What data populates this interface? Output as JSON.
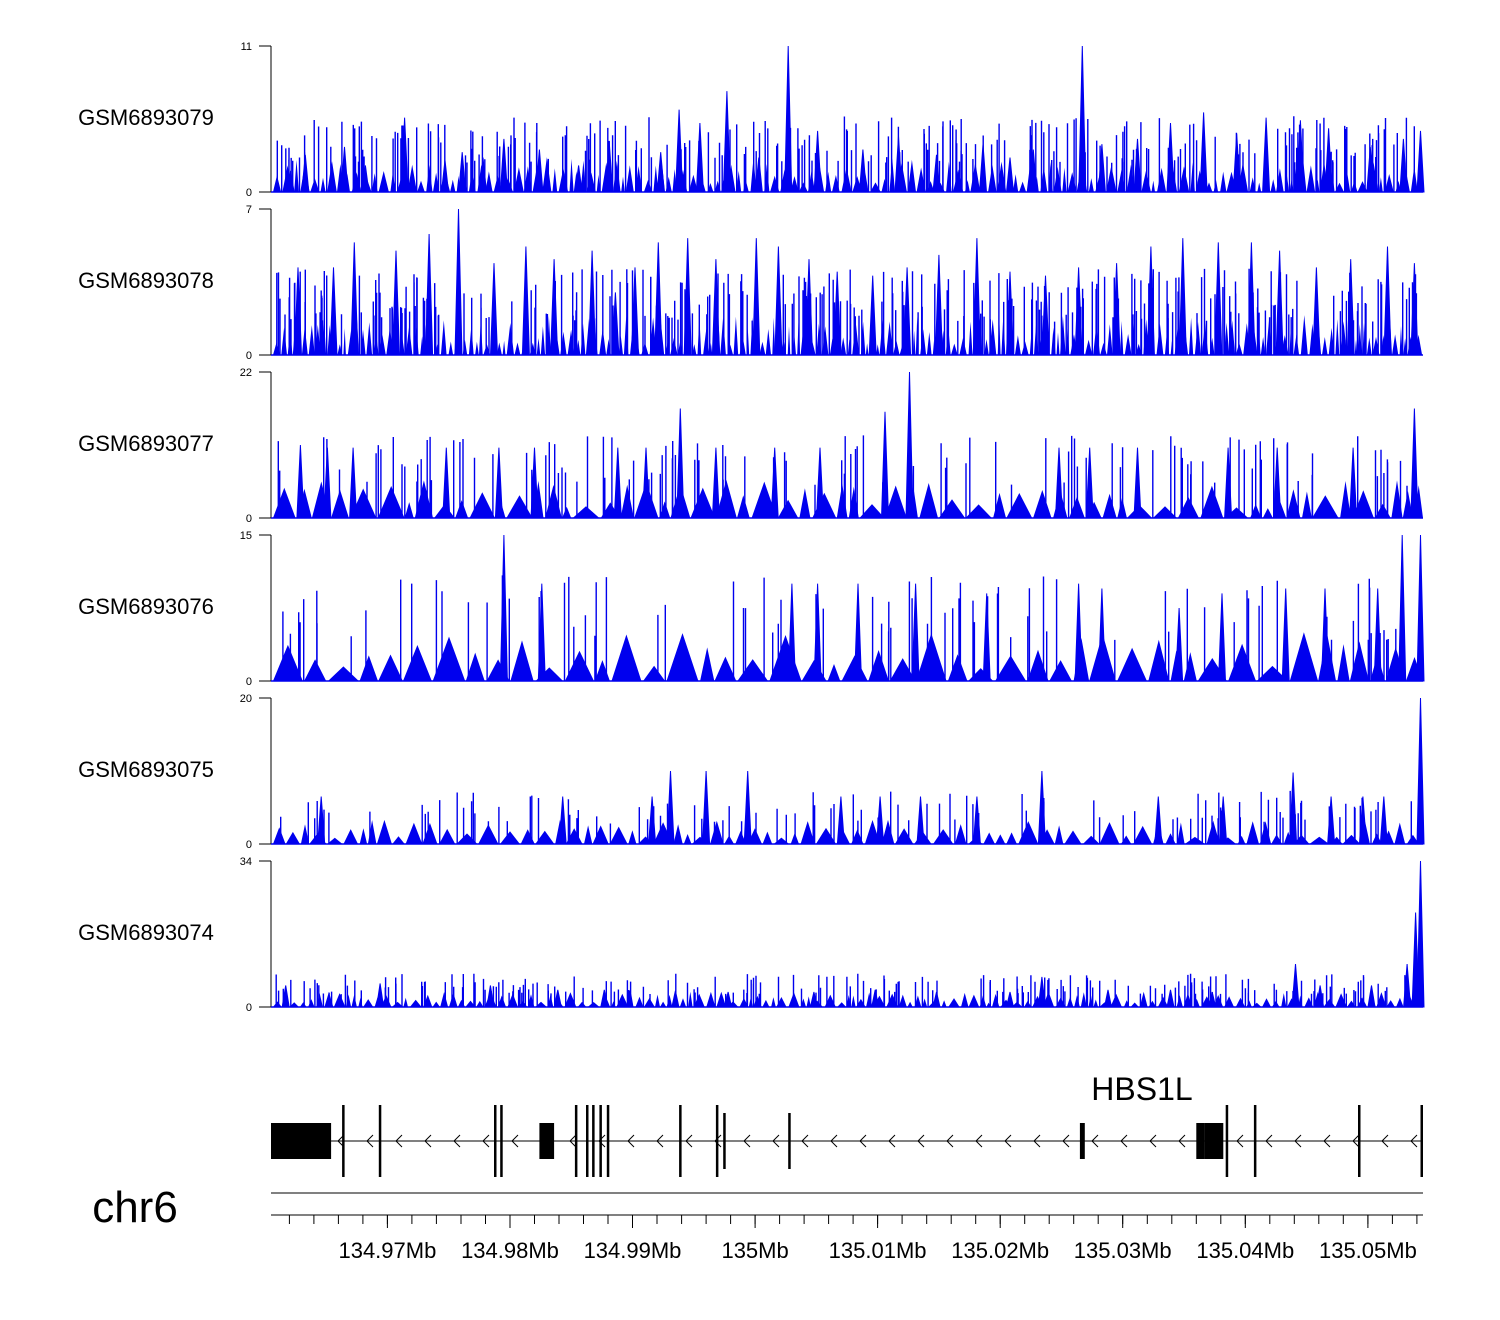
{
  "chart_data": {
    "type": "area",
    "title": "",
    "chromosome": "chr6",
    "gene_label": "HBS1L",
    "xlim_mb": [
      134.9605,
      135.0545
    ],
    "x_ticks": [
      {
        "value": 134.97,
        "label": "134.97Mb"
      },
      {
        "value": 134.98,
        "label": "134.98Mb"
      },
      {
        "value": 134.99,
        "label": "134.99Mb"
      },
      {
        "value": 135.0,
        "label": "135Mb"
      },
      {
        "value": 135.01,
        "label": "135.01Mb"
      },
      {
        "value": 135.02,
        "label": "135.02Mb"
      },
      {
        "value": 135.03,
        "label": "135.03Mb"
      },
      {
        "value": 135.04,
        "label": "135.04Mb"
      },
      {
        "value": 135.05,
        "label": "135.05Mb"
      }
    ],
    "fill_color": "#0000ee",
    "tracks": [
      {
        "name": "GSM6893079",
        "ylim": [
          0,
          11
        ],
        "ymax_label": "11",
        "ymin_label": "0",
        "peaks": [
          [
            134.9621,
            1.6
          ],
          [
            134.9633,
            2.8
          ],
          [
            134.9665,
            3.4
          ],
          [
            134.9682,
            2.0
          ],
          [
            134.9714,
            5.6
          ],
          [
            134.9747,
            2.4
          ],
          [
            134.9761,
            3.0
          ],
          [
            134.9778,
            2.6
          ],
          [
            134.9795,
            4.0
          ],
          [
            134.9824,
            3.2
          ],
          [
            134.9856,
            2.0
          ],
          [
            134.9881,
            3.8
          ],
          [
            134.9923,
            3.0
          ],
          [
            134.9938,
            6.2
          ],
          [
            134.9955,
            5.2
          ],
          [
            134.9977,
            7.6
          ],
          [
            135.0003,
            2.6
          ],
          [
            135.0027,
            11.0
          ],
          [
            135.0051,
            4.6
          ],
          [
            135.0088,
            3.2
          ],
          [
            135.0117,
            4.2
          ],
          [
            135.0148,
            2.8
          ],
          [
            135.0186,
            3.6
          ],
          [
            135.0208,
            2.6
          ],
          [
            135.0227,
            3.2
          ],
          [
            135.0267,
            11.0
          ],
          [
            135.0283,
            3.6
          ],
          [
            135.0312,
            4.0
          ],
          [
            135.0339,
            5.2
          ],
          [
            135.0366,
            6.0
          ],
          [
            135.0393,
            4.4
          ],
          [
            135.0417,
            5.6
          ],
          [
            135.0445,
            5.4
          ],
          [
            135.0468,
            4.8
          ],
          [
            135.0502,
            3.4
          ],
          [
            135.0529,
            4.0
          ],
          [
            135.0543,
            4.6
          ]
        ]
      },
      {
        "name": "GSM6893078",
        "ylim": [
          0,
          7
        ],
        "ymax_label": "7",
        "ymin_label": "0",
        "peaks": [
          [
            134.9627,
            4.2
          ],
          [
            134.9656,
            4.2
          ],
          [
            134.9673,
            5.4
          ],
          [
            134.9707,
            5.0
          ],
          [
            134.9734,
            5.8
          ],
          [
            134.9758,
            7.0
          ],
          [
            134.9787,
            4.4
          ],
          [
            134.9813,
            5.2
          ],
          [
            134.9836,
            4.6
          ],
          [
            134.9867,
            5.0
          ],
          [
            134.9886,
            3.0
          ],
          [
            134.9902,
            4.2
          ],
          [
            134.9921,
            5.4
          ],
          [
            134.9945,
            5.6
          ],
          [
            134.9968,
            4.6
          ],
          [
            135.0001,
            5.6
          ],
          [
            135.0019,
            5.2
          ],
          [
            135.0044,
            4.6
          ],
          [
            135.0067,
            4.0
          ],
          [
            135.0096,
            3.8
          ],
          [
            135.0124,
            4.2
          ],
          [
            135.015,
            4.8
          ],
          [
            135.0181,
            5.6
          ],
          [
            135.0208,
            4.0
          ],
          [
            135.0237,
            3.8
          ],
          [
            135.0264,
            4.2
          ],
          [
            135.0295,
            4.4
          ],
          [
            135.0323,
            5.2
          ],
          [
            135.0349,
            5.6
          ],
          [
            135.0378,
            5.4
          ],
          [
            135.0405,
            5.4
          ],
          [
            135.0428,
            5.0
          ],
          [
            135.0458,
            4.2
          ],
          [
            135.0486,
            4.6
          ],
          [
            135.0516,
            5.2
          ],
          [
            135.0538,
            4.4
          ]
        ]
      },
      {
        "name": "GSM6893077",
        "ylim": [
          0,
          22
        ],
        "ymax_label": "22",
        "ymin_label": "0",
        "peaks": [
          [
            134.9629,
            11.0
          ],
          [
            134.9651,
            10.6
          ],
          [
            134.9672,
            10.6
          ],
          [
            134.9748,
            10.6
          ],
          [
            134.9791,
            10.6
          ],
          [
            134.982,
            10.6
          ],
          [
            134.9888,
            10.6
          ],
          [
            134.9911,
            10.6
          ],
          [
            134.9939,
            16.5
          ],
          [
            134.9968,
            10.6
          ],
          [
            135.0016,
            10.6
          ],
          [
            135.0053,
            10.6
          ],
          [
            135.0106,
            16.0
          ],
          [
            135.0126,
            22.0
          ],
          [
            135.0248,
            10.6
          ],
          [
            135.0273,
            10.6
          ],
          [
            135.0312,
            10.6
          ],
          [
            135.0386,
            10.6
          ],
          [
            135.0426,
            10.6
          ],
          [
            135.0488,
            10.6
          ],
          [
            135.0538,
            16.5
          ]
        ]
      },
      {
        "name": "GSM6893076",
        "ylim": [
          0,
          15
        ],
        "ymax_label": "15",
        "ymin_label": "0",
        "peaks": [
          [
            134.9795,
            15.0
          ],
          [
            134.9826,
            10.0
          ],
          [
            135.003,
            10.0
          ],
          [
            135.0051,
            10.0
          ],
          [
            135.0084,
            10.0
          ],
          [
            135.0131,
            10.0
          ],
          [
            135.0189,
            9.0
          ],
          [
            135.0264,
            10.0
          ],
          [
            135.0283,
            9.5
          ],
          [
            135.0346,
            7.5
          ],
          [
            135.0381,
            9.0
          ],
          [
            135.0433,
            9.5
          ],
          [
            135.0465,
            9.5
          ],
          [
            135.0508,
            9.5
          ],
          [
            135.0528,
            15.0
          ],
          [
            135.0543,
            15.0
          ]
        ]
      },
      {
        "name": "GSM6893075",
        "ylim": [
          0,
          20
        ],
        "ymax_label": "20",
        "ymin_label": "0",
        "peaks": [
          [
            134.9646,
            6.5
          ],
          [
            134.9843,
            6.5
          ],
          [
            134.9916,
            6.5
          ],
          [
            134.9931,
            10.0
          ],
          [
            134.996,
            10.0
          ],
          [
            134.9994,
            10.0
          ],
          [
            135.007,
            6.5
          ],
          [
            135.0102,
            6.5
          ],
          [
            135.0135,
            6.5
          ],
          [
            135.0181,
            6.5
          ],
          [
            135.0234,
            10.0
          ],
          [
            135.0329,
            6.5
          ],
          [
            135.0382,
            6.5
          ],
          [
            135.0439,
            9.8
          ],
          [
            135.047,
            6.5
          ],
          [
            135.0496,
            6.5
          ],
          [
            135.0513,
            6.5
          ],
          [
            135.0543,
            20.0
          ]
        ]
      },
      {
        "name": "GSM6893074",
        "ylim": [
          0,
          34
        ],
        "ymax_label": "34",
        "ymin_label": "0",
        "peaks": [
          [
            134.9617,
            5.0
          ],
          [
            134.9694,
            5.5
          ],
          [
            134.9784,
            5.0
          ],
          [
            134.9839,
            4.0
          ],
          [
            134.9877,
            4.0
          ],
          [
            134.9935,
            3.8
          ],
          [
            134.9978,
            3.5
          ],
          [
            135.0048,
            3.5
          ],
          [
            135.0098,
            4.0
          ],
          [
            135.0148,
            3.5
          ],
          [
            135.0208,
            3.5
          ],
          [
            135.0234,
            7.0
          ],
          [
            135.0288,
            4.0
          ],
          [
            135.0339,
            4.0
          ],
          [
            135.0373,
            3.5
          ],
          [
            135.0441,
            10.0
          ],
          [
            135.0461,
            5.0
          ],
          [
            135.0503,
            5.0
          ],
          [
            135.0532,
            10.0
          ],
          [
            135.0539,
            22.0
          ],
          [
            135.0543,
            34.0
          ]
        ]
      }
    ],
    "gene_model": {
      "strand": "-",
      "exons_mb": [
        [
          134.9605,
          134.9654,
          "thick"
        ],
        [
          134.9663,
          134.9665,
          "line"
        ],
        [
          134.9693,
          134.9695,
          "line"
        ],
        [
          134.9787,
          134.9789,
          "line"
        ],
        [
          134.9792,
          134.9794,
          "line"
        ],
        [
          134.9824,
          134.9836,
          "thick"
        ],
        [
          134.9853,
          134.9855,
          "line"
        ],
        [
          134.9862,
          134.9864,
          "line"
        ],
        [
          134.9867,
          134.9869,
          "line"
        ],
        [
          134.9873,
          134.9875,
          "line"
        ],
        [
          134.9879,
          134.9881,
          "line"
        ],
        [
          134.9938,
          134.994,
          "line"
        ],
        [
          134.9968,
          134.997,
          "line"
        ],
        [
          134.9974,
          134.9976,
          "line"
        ],
        [
          135.0027,
          135.0029,
          "line"
        ],
        [
          135.0265,
          135.0269,
          "mid"
        ],
        [
          135.036,
          135.0367,
          "mid"
        ],
        [
          135.0367,
          135.0382,
          "thick"
        ],
        [
          135.0384,
          135.0386,
          "line"
        ],
        [
          135.0407,
          135.0409,
          "line"
        ],
        [
          135.0492,
          135.0494,
          "line"
        ],
        [
          135.0543,
          135.0545,
          "line"
        ]
      ]
    }
  }
}
